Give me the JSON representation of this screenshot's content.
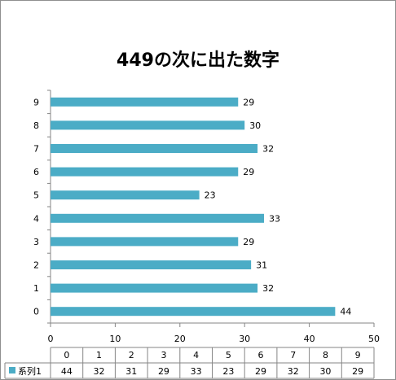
{
  "chart_data": {
    "type": "bar",
    "orientation": "horizontal",
    "title": "449の次に出た数字",
    "categories": [
      "0",
      "1",
      "2",
      "3",
      "4",
      "5",
      "6",
      "7",
      "8",
      "9"
    ],
    "series": [
      {
        "name": "系列1",
        "values": [
          44,
          32,
          31,
          29,
          33,
          23,
          29,
          32,
          30,
          29
        ]
      }
    ],
    "xlim": [
      0,
      50
    ],
    "xticks": [
      0,
      10,
      20,
      30,
      40,
      50
    ],
    "grid": false,
    "data_table": true,
    "bar_color": "#4bacc6"
  }
}
